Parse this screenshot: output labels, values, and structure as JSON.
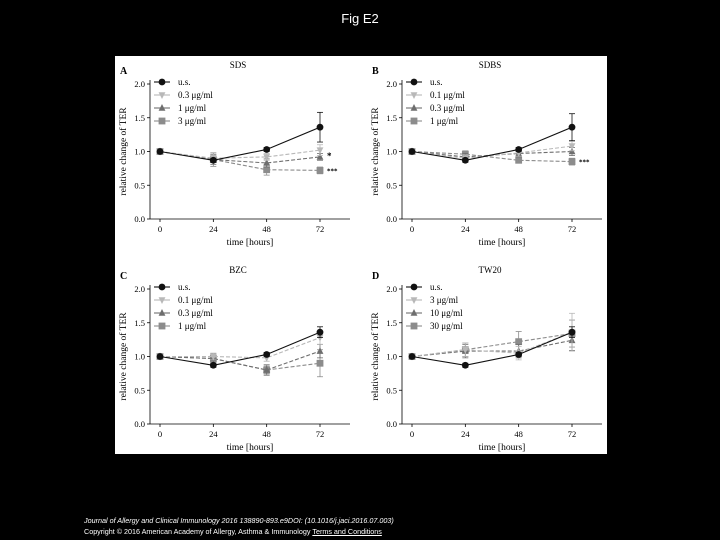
{
  "title": "Fig E2",
  "caption": {
    "journal": "Journal of Allergy and Clinical Immunology 2016 138890-893.e9DOI: (10.1016/j.jaci.2016.07.003)",
    "copyright": "Copyright © 2016 American Academy of Allergy, Asthma & Immunology",
    "terms_link": "Terms and Conditions"
  },
  "colors": {
    "us": "#111111",
    "low": "#b8b8b8",
    "mid": "#6e6e6e",
    "high": "#8c8c8c"
  },
  "chart_data": [
    {
      "panel": "A",
      "type": "line",
      "title": "SDS",
      "xlabel": "time [hours]",
      "ylabel": "relative change of TER",
      "x": [
        0,
        24,
        48,
        72
      ],
      "xticks": [
        "0",
        "24",
        "48",
        "72"
      ],
      "yticks": [
        "0.0",
        "0.5",
        "1.0",
        "1.5",
        "2.0"
      ],
      "ylim": [
        0,
        2.0
      ],
      "legend": "top-left",
      "series": [
        {
          "name": "u.s.",
          "marker": "circle",
          "color": "us",
          "values": [
            1.0,
            0.87,
            1.03,
            1.36
          ],
          "err": [
            0,
            0.03,
            0.03,
            0.22
          ]
        },
        {
          "name": "0.3 μg/ml",
          "marker": "triangle-down",
          "color": "low",
          "values": [
            1.0,
            0.9,
            0.92,
            1.02
          ],
          "err": [
            0,
            0.06,
            0.05,
            0.08
          ]
        },
        {
          "name": "1 μg/ml",
          "marker": "triangle-up",
          "color": "mid",
          "values": [
            1.0,
            0.88,
            0.83,
            0.92
          ],
          "err": [
            0,
            0.07,
            0.06,
            0.05
          ]
        },
        {
          "name": "3 μg/ml",
          "marker": "square",
          "color": "high",
          "values": [
            1.0,
            0.88,
            0.73,
            0.72
          ],
          "err": [
            0,
            0.1,
            0.08,
            0.05
          ]
        }
      ],
      "annotations": [
        {
          "x": 72,
          "y": 0.93,
          "text": "*"
        },
        {
          "x": 72,
          "y": 0.72,
          "text": "***"
        }
      ]
    },
    {
      "panel": "B",
      "type": "line",
      "title": "SDBS",
      "xlabel": "time [hours]",
      "ylabel": "relative change of TER",
      "x": [
        0,
        24,
        48,
        72
      ],
      "xticks": [
        "0",
        "24",
        "48",
        "72"
      ],
      "yticks": [
        "0.0",
        "0.5",
        "1.0",
        "1.5",
        "2.0"
      ],
      "ylim": [
        0,
        2.0
      ],
      "legend": "top-left",
      "series": [
        {
          "name": "u.s.",
          "marker": "circle",
          "color": "us",
          "values": [
            1.0,
            0.87,
            1.03,
            1.36
          ],
          "err": [
            0,
            0.03,
            0.03,
            0.2
          ]
        },
        {
          "name": "0.1 μg/ml",
          "marker": "triangle-down",
          "color": "low",
          "values": [
            1.0,
            0.9,
            0.98,
            1.08
          ],
          "err": [
            0,
            0.05,
            0.05,
            0.07
          ]
        },
        {
          "name": "0.3 μg/ml",
          "marker": "triangle-up",
          "color": "mid",
          "values": [
            1.0,
            0.92,
            0.97,
            1.0
          ],
          "err": [
            0,
            0.05,
            0.05,
            0.06
          ]
        },
        {
          "name": "1 μg/ml",
          "marker": "square",
          "color": "high",
          "values": [
            1.0,
            0.96,
            0.87,
            0.85
          ],
          "err": [
            0,
            0.05,
            0.04,
            0.05
          ]
        }
      ],
      "annotations": [
        {
          "x": 72,
          "y": 0.85,
          "text": "***"
        }
      ]
    },
    {
      "panel": "C",
      "type": "line",
      "title": "BZC",
      "xlabel": "time [hours]",
      "ylabel": "relative change of TER",
      "x": [
        0,
        24,
        48,
        72
      ],
      "xticks": [
        "0",
        "24",
        "48",
        "72"
      ],
      "yticks": [
        "0.0",
        "0.5",
        "1.0",
        "1.5",
        "2.0"
      ],
      "ylim": [
        0,
        2.0
      ],
      "legend": "top-left",
      "series": [
        {
          "name": "u.s.",
          "marker": "circle",
          "color": "us",
          "values": [
            1.0,
            0.87,
            1.03,
            1.36
          ],
          "err": [
            0,
            0.03,
            0.03,
            0.08
          ]
        },
        {
          "name": "0.1 μg/ml",
          "marker": "triangle-down",
          "color": "low",
          "values": [
            1.0,
            1.0,
            0.98,
            1.28
          ],
          "err": [
            0,
            0.05,
            0.05,
            0.1
          ]
        },
        {
          "name": "0.3 μg/ml",
          "marker": "triangle-up",
          "color": "mid",
          "values": [
            1.0,
            0.97,
            0.8,
            1.08
          ],
          "err": [
            0,
            0.06,
            0.06,
            0.1
          ]
        },
        {
          "name": "1 μg/ml",
          "marker": "square",
          "color": "high",
          "values": [
            1.0,
            0.97,
            0.8,
            0.9
          ],
          "err": [
            0,
            0.07,
            0.08,
            0.2
          ]
        }
      ]
    },
    {
      "panel": "D",
      "type": "line",
      "title": "TW20",
      "xlabel": "time [hours]",
      "ylabel": "relative change of TER",
      "x": [
        0,
        24,
        48,
        72
      ],
      "xticks": [
        "0",
        "24",
        "48",
        "72"
      ],
      "yticks": [
        "0.0",
        "0.5",
        "1.0",
        "1.5",
        "2.0"
      ],
      "ylim": [
        0,
        2.0
      ],
      "legend": "top-left",
      "series": [
        {
          "name": "u.s.",
          "marker": "circle",
          "color": "us",
          "values": [
            1.0,
            0.87,
            1.03,
            1.36
          ],
          "err": [
            0,
            0.03,
            0.03,
            0.08
          ]
        },
        {
          "name": "3 μg/ml",
          "marker": "triangle-down",
          "color": "low",
          "values": [
            1.0,
            1.1,
            1.05,
            1.36
          ],
          "err": [
            0,
            0.1,
            0.1,
            0.28
          ]
        },
        {
          "name": "10 μg/ml",
          "marker": "triangle-up",
          "color": "mid",
          "values": [
            1.0,
            1.08,
            1.08,
            1.24
          ],
          "err": [
            0,
            0.1,
            0.1,
            0.15
          ]
        },
        {
          "name": "30 μg/ml",
          "marker": "square",
          "color": "high",
          "values": [
            1.0,
            1.1,
            1.22,
            1.34
          ],
          "err": [
            0,
            0.1,
            0.15,
            0.2
          ]
        }
      ]
    }
  ]
}
